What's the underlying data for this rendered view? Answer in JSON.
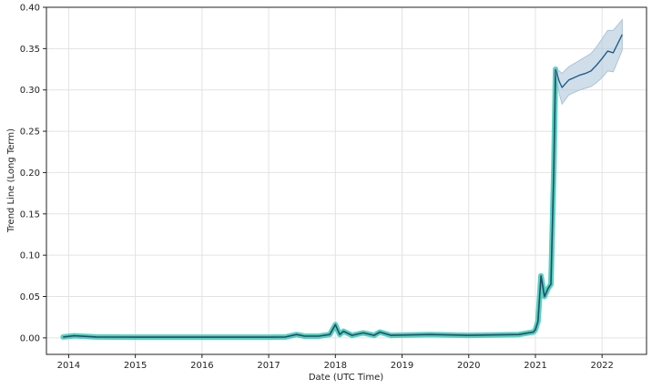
{
  "chart_data": {
    "type": "line",
    "xlabel": "Date (UTC Time)",
    "ylabel": "Trend Line (Long Term)",
    "x_ticks": [
      "2014",
      "2015",
      "2016",
      "2017",
      "2018",
      "2019",
      "2020",
      "2021",
      "2022"
    ],
    "y_ticks": [
      "0.00",
      "0.05",
      "0.10",
      "0.15",
      "0.20",
      "0.25",
      "0.30",
      "0.35",
      "0.40"
    ],
    "xlim": [
      "2013-09",
      "2022-09"
    ],
    "ylim": [
      -0.02,
      0.4
    ],
    "grid": true,
    "series": [
      {
        "style": "history",
        "color": "#1f4e6b",
        "band_color": "#3cc9b3",
        "points": [
          [
            "2013-12-01",
            0.001
          ],
          [
            "2014-02-01",
            0.0025
          ],
          [
            "2014-06-01",
            0.001
          ],
          [
            "2015-01-01",
            0.0008
          ],
          [
            "2016-01-01",
            0.0008
          ],
          [
            "2017-01-01",
            0.0008
          ],
          [
            "2017-04-01",
            0.001
          ],
          [
            "2017-06-01",
            0.004
          ],
          [
            "2017-07-15",
            0.002
          ],
          [
            "2017-10-01",
            0.002
          ],
          [
            "2017-12-01",
            0.004
          ],
          [
            "2018-01-01",
            0.016
          ],
          [
            "2018-01-25",
            0.004
          ],
          [
            "2018-02-15",
            0.008
          ],
          [
            "2018-04-01",
            0.003
          ],
          [
            "2018-06-01",
            0.006
          ],
          [
            "2018-08-01",
            0.003
          ],
          [
            "2018-09-01",
            0.007
          ],
          [
            "2018-11-01",
            0.003
          ],
          [
            "2019-06-01",
            0.004
          ],
          [
            "2020-01-01",
            0.003
          ],
          [
            "2020-10-01",
            0.004
          ],
          [
            "2020-12-20",
            0.007
          ],
          [
            "2021-01-01",
            0.01
          ],
          [
            "2021-01-15",
            0.02
          ],
          [
            "2021-02-01",
            0.075
          ],
          [
            "2021-02-20",
            0.05
          ],
          [
            "2021-03-10",
            0.06
          ],
          [
            "2021-03-25",
            0.065
          ],
          [
            "2021-04-10",
            0.2
          ],
          [
            "2021-04-20",
            0.325
          ]
        ]
      },
      {
        "style": "forecast",
        "color": "#1f5f8b",
        "band_color": "#a9c3d8",
        "points": [
          [
            "2021-04-20",
            0.325
          ],
          [
            "2021-05-10",
            0.31
          ],
          [
            "2021-05-25",
            0.303
          ],
          [
            "2021-07-01",
            0.312
          ],
          [
            "2021-08-01",
            0.315
          ],
          [
            "2021-09-01",
            0.318
          ],
          [
            "2021-10-01",
            0.32
          ],
          [
            "2021-11-01",
            0.323
          ],
          [
            "2021-12-01",
            0.33
          ],
          [
            "2022-01-01",
            0.338
          ],
          [
            "2022-02-01",
            0.347
          ],
          [
            "2022-03-01",
            0.345
          ],
          [
            "2022-04-20",
            0.367
          ]
        ],
        "upper": [
          0.325,
          0.323,
          0.32,
          0.328,
          0.332,
          0.336,
          0.34,
          0.344,
          0.352,
          0.362,
          0.372,
          0.372,
          0.385
        ],
        "lower": [
          0.325,
          0.295,
          0.283,
          0.294,
          0.297,
          0.3,
          0.302,
          0.304,
          0.309,
          0.315,
          0.323,
          0.322,
          0.348
        ]
      }
    ]
  }
}
